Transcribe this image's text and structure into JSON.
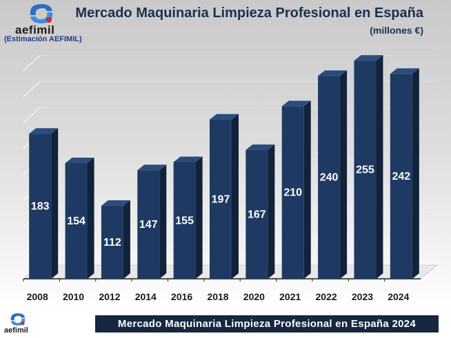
{
  "brand": {
    "name": "aefimil",
    "estimation_note": "(Estimación AEFIMIL)",
    "icon": "aefimil-logo"
  },
  "colors": {
    "bar_front": "#1e3a63",
    "bar_side": "#11223b",
    "bar_top": "#2a4d7e",
    "title": "#17324f",
    "banner": "#16273f"
  },
  "chart_data": {
    "type": "bar",
    "title": "Mercado Maquinaria Limpieza Profesional en España",
    "subtitle": "(millones €)",
    "xlabel": "",
    "ylabel": "",
    "categories": [
      "2008",
      "2010",
      "2012",
      "2014",
      "2016",
      "2018",
      "2020",
      "2021",
      "2022",
      "2023",
      "2024"
    ],
    "values": [
      183,
      154,
      112,
      147,
      155,
      197,
      167,
      210,
      240,
      255,
      242
    ],
    "ylim": [
      40,
      270
    ],
    "grid": true,
    "data_labels": true,
    "three_d": true
  },
  "footer": {
    "banner_text": "Mercado Maquinaria Limpieza Profesional en España 2024"
  }
}
